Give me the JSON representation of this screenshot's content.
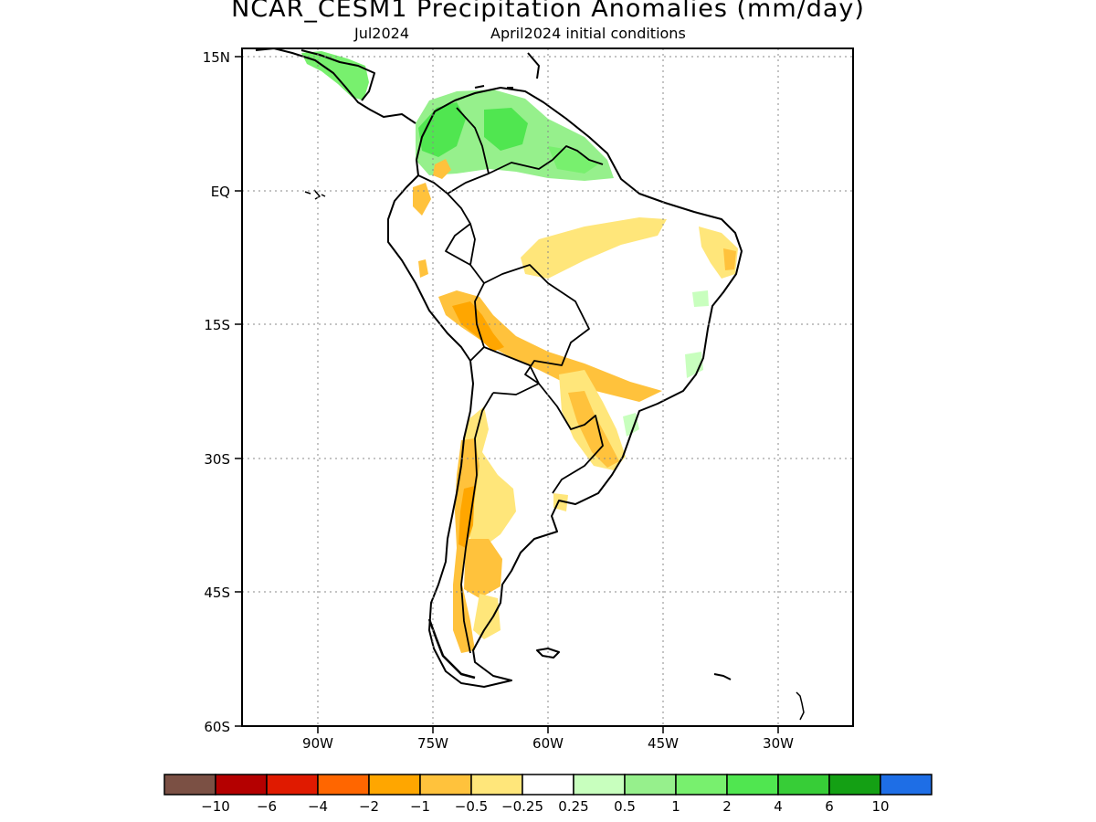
{
  "title": "NCAR_CESM1 Precipitation Anomalies (mm/day)",
  "subtitle_left": "Jul2024",
  "subtitle_right": "April2024 initial conditions",
  "map": {
    "lat_labels": [
      "15N",
      "EQ",
      "15S",
      "30S",
      "45S",
      "60S"
    ],
    "lon_labels": [
      "90W",
      "75W",
      "60W",
      "45W",
      "30W"
    ],
    "grid": "dotted"
  },
  "legend": {
    "labels": [
      "-10",
      "-6",
      "-4",
      "-2",
      "-1",
      "-0.5",
      "-0.25",
      "0.25",
      "0.5",
      "1",
      "2",
      "4",
      "6",
      "10"
    ],
    "colors": [
      "#7b5044",
      "#b40000",
      "#e01a00",
      "#ff6600",
      "#ffa600",
      "#ffc23c",
      "#ffe67a",
      "#ffffff",
      "#c8ffbe",
      "#96f08c",
      "#78f06e",
      "#50e650",
      "#37cd37",
      "#14a014",
      "#1e6ee6"
    ]
  }
}
